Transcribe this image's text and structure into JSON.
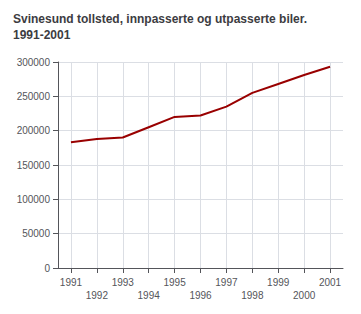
{
  "chart_data": {
    "type": "line",
    "title": "Svinesund tollsted, innpasserte og utpasserte biler.\n1991-2001",
    "x": [
      1991,
      1992,
      1993,
      1994,
      1995,
      1996,
      1997,
      1998,
      1999,
      2000,
      2001
    ],
    "values": [
      183000,
      188000,
      190000,
      205000,
      220000,
      222000,
      235000,
      255000,
      268000,
      281000,
      293000
    ],
    "color": "#990000",
    "xlim": [
      1990.5,
      2001.5
    ],
    "xticks": [
      1991,
      1992,
      1993,
      1994,
      1995,
      1996,
      1997,
      1998,
      1999,
      2000,
      2001
    ],
    "ylim": [
      0,
      300000
    ],
    "yticks": [
      0,
      50000,
      100000,
      150000,
      200000,
      250000,
      300000
    ],
    "grid": true
  }
}
